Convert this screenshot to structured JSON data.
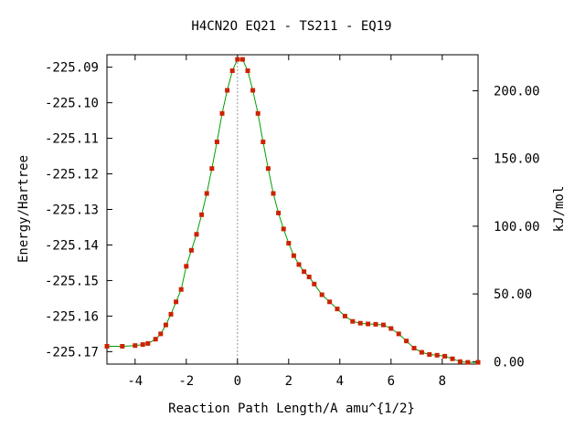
{
  "chart_data": {
    "type": "line",
    "title": "H4CN2O   EQ21 - TS211 - EQ19",
    "xlabel": "Reaction Path Length/A amu^{1/2}",
    "ylabel": "Energy/Hartree",
    "y2label": "kJ/mol",
    "xlim": [
      -5.1,
      9.4
    ],
    "ylim": [
      -225.1735,
      -225.0865
    ],
    "y2lim": [
      -1.8,
      226.6
    ],
    "x_ticks": [
      -4,
      -2,
      0,
      2,
      4,
      6,
      8
    ],
    "x_tick_labels": [
      "-4",
      "-2",
      "0",
      "2",
      "4",
      "6",
      "8"
    ],
    "y_ticks": [
      -225.09,
      -225.1,
      -225.11,
      -225.12,
      -225.13,
      -225.14,
      -225.15,
      -225.16,
      -225.17
    ],
    "y_tick_labels": [
      "-225.09",
      "-225.10",
      "-225.11",
      "-225.12",
      "-225.13",
      "-225.14",
      "-225.15",
      "-225.16",
      "-225.17"
    ],
    "y2_ticks": [
      0,
      50,
      100,
      150,
      200
    ],
    "y2_tick_labels": [
      "0.00",
      "50.00",
      "100.00",
      "150.00",
      "200.00"
    ],
    "ts_marker_x": 0,
    "legend": "none",
    "grid": false,
    "line_color": "#00a000",
    "marker_color": "#cc2200",
    "series": [
      {
        "x": [
          -5.1,
          -4.5,
          -4.0,
          -3.7,
          -3.5,
          -3.2,
          -3.0,
          -2.8,
          -2.6,
          -2.4,
          -2.2,
          -2.0,
          -1.8,
          -1.6,
          -1.4,
          -1.2,
          -1.0,
          -0.8,
          -0.6,
          -0.4,
          -0.2,
          0.0,
          0.2,
          0.4,
          0.6,
          0.8,
          1.0,
          1.2,
          1.4,
          1.6,
          1.8,
          2.0,
          2.2,
          2.4,
          2.6,
          2.8,
          3.0,
          3.3,
          3.6,
          3.9,
          4.2,
          4.5,
          4.8,
          5.1,
          5.4,
          5.7,
          6.0,
          6.3,
          6.6,
          6.9,
          7.2,
          7.5,
          7.8,
          8.1,
          8.4,
          8.7,
          9.0,
          9.4
        ],
        "y": [
          -225.1685,
          -225.1685,
          -225.1683,
          -225.168,
          -225.1677,
          -225.1665,
          -225.165,
          -225.1625,
          -225.1595,
          -225.156,
          -225.1525,
          -225.146,
          -225.1415,
          -225.137,
          -225.1315,
          -225.1255,
          -225.1185,
          -225.111,
          -225.103,
          -225.0965,
          -225.091,
          -225.0878,
          -225.0878,
          -225.091,
          -225.0965,
          -225.103,
          -225.111,
          -225.1185,
          -225.1255,
          -225.131,
          -225.1355,
          -225.1395,
          -225.143,
          -225.1455,
          -225.1475,
          -225.149,
          -225.151,
          -225.154,
          -225.156,
          -225.158,
          -225.16,
          -225.1615,
          -225.162,
          -225.1622,
          -225.1623,
          -225.1625,
          -225.1635,
          -225.165,
          -225.167,
          -225.169,
          -225.1702,
          -225.1708,
          -225.171,
          -225.1713,
          -225.172,
          -225.1728,
          -225.173,
          -225.173
        ]
      }
    ]
  }
}
